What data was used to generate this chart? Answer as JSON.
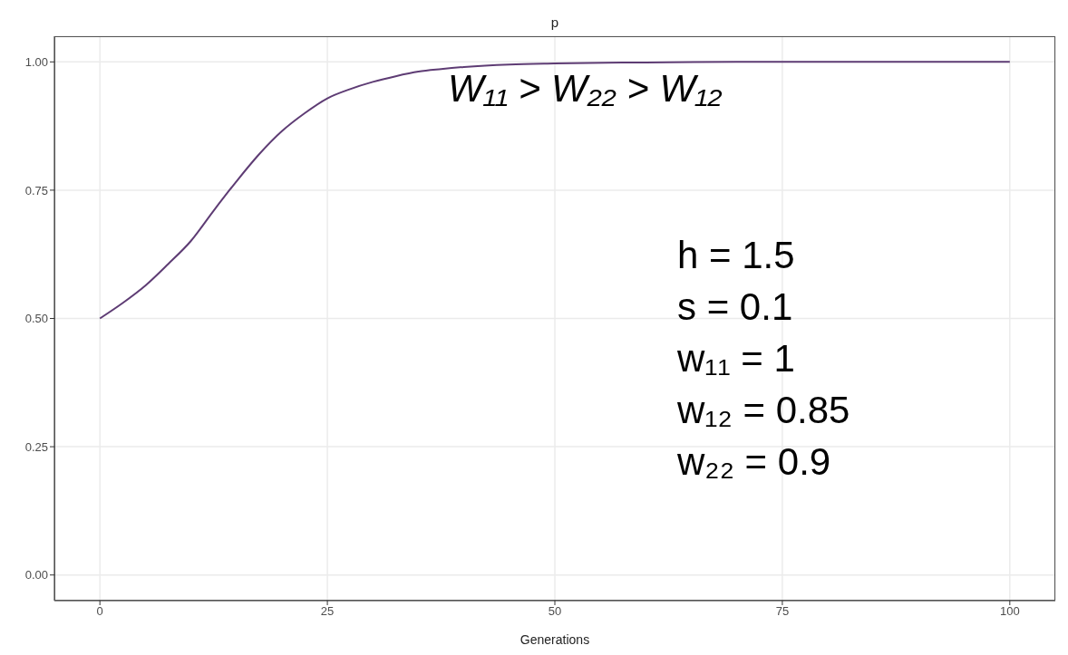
{
  "chart_data": {
    "type": "line",
    "title": "p",
    "xlabel": "Generations",
    "x": [
      0,
      2.5,
      5,
      7.5,
      10,
      12.5,
      15,
      17.5,
      20,
      22.5,
      25,
      27.5,
      30,
      32.5,
      35,
      37.5,
      40,
      45,
      50,
      60,
      70,
      80,
      90,
      100
    ],
    "series": [
      {
        "color": "#5e3c74",
        "values": [
          0.5,
          0.53,
          0.564,
          0.606,
          0.651,
          0.71,
          0.767,
          0.82,
          0.865,
          0.9,
          0.929,
          0.947,
          0.961,
          0.972,
          0.981,
          0.986,
          0.99,
          0.995,
          0.997,
          0.999,
          1,
          1,
          1,
          1
        ]
      }
    ],
    "xlim": [
      -5,
      105
    ],
    "ylim": [
      -0.05,
      1.05
    ],
    "xticks": [
      0,
      25,
      50,
      75,
      100
    ],
    "yticks": [
      {
        "value": 0,
        "label": "0.00"
      },
      {
        "value": 0.25,
        "label": "0.25"
      },
      {
        "value": 0.5,
        "label": "0.50"
      },
      {
        "value": 0.75,
        "label": "0.75"
      },
      {
        "value": 1,
        "label": "1.00"
      }
    ],
    "grid": true,
    "line_style": "solid",
    "marker": "none",
    "annotations": [
      "W₁₁ > W₂₂ > W₁₂",
      "h = 1.5",
      "s = 0.1",
      "w₁₁ = 1",
      "w₁₂ = 0.85",
      "w₂₂ = 0.9"
    ]
  }
}
